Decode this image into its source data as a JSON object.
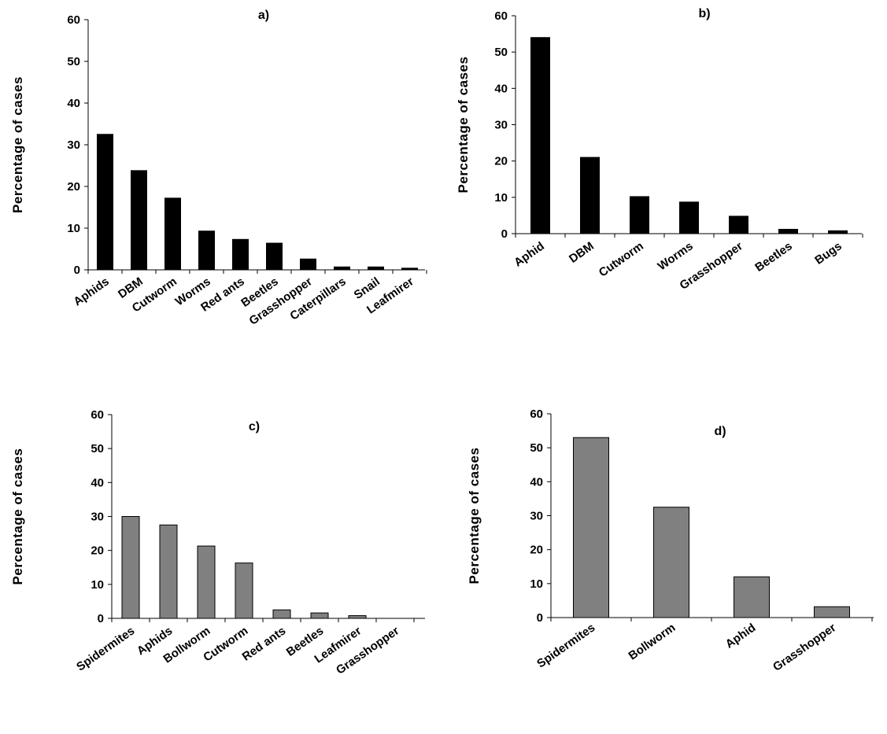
{
  "chart_data": [
    {
      "type": "bar",
      "title": "a)",
      "ylabel": "Percentage of cases",
      "xlabel": "",
      "ylim": [
        0,
        60
      ],
      "yticks": [
        0,
        10,
        20,
        30,
        40,
        50,
        60
      ],
      "grid": false,
      "bar_color": "#000000",
      "categories": [
        "Aphids",
        "DBM",
        "Cutworm",
        "Worms",
        "Red ants",
        "Beetles",
        "Grasshopper",
        "Caterpillars",
        "Snail",
        "Leafmirer"
      ],
      "values": [
        32.5,
        23.8,
        17.2,
        9.3,
        7.3,
        6.4,
        2.6,
        0.7,
        0.7,
        0.4
      ]
    },
    {
      "type": "bar",
      "title": "b)",
      "ylabel": "Percentage of cases",
      "xlabel": "",
      "ylim": [
        0,
        60
      ],
      "yticks": [
        0,
        10,
        20,
        30,
        40,
        50,
        60
      ],
      "grid": false,
      "bar_color": "#000000",
      "categories": [
        "Aphid",
        "DBM",
        "Cutworm",
        "Worms",
        "Grasshopper",
        "Beetles",
        "Bugs"
      ],
      "values": [
        54.0,
        21.0,
        10.2,
        8.7,
        4.8,
        1.2,
        0.8
      ]
    },
    {
      "type": "bar",
      "title": "c)",
      "ylabel": "Percentage of cases",
      "xlabel": "",
      "ylim": [
        0,
        60
      ],
      "yticks": [
        0,
        10,
        20,
        30,
        40,
        50,
        60
      ],
      "grid": false,
      "bar_color": "#808080",
      "categories": [
        "Spidermites",
        "Aphids",
        "Bollworm",
        "Cutworm",
        "Red ants",
        "Beetles",
        "Leafmirer",
        "Grasshopper"
      ],
      "values": [
        30.0,
        27.5,
        21.3,
        16.3,
        2.5,
        1.6,
        0.8,
        0
      ]
    },
    {
      "type": "bar",
      "title": "d)",
      "ylabel": "Percentage of cases",
      "xlabel": "",
      "ylim": [
        0,
        60
      ],
      "yticks": [
        0,
        10,
        20,
        30,
        40,
        50,
        60
      ],
      "grid": false,
      "bar_color": "#808080",
      "categories": [
        "Spidermites",
        "Bollworm",
        "Aphid",
        "Grasshopper"
      ],
      "values": [
        53.0,
        32.5,
        12.0,
        3.2
      ]
    }
  ]
}
